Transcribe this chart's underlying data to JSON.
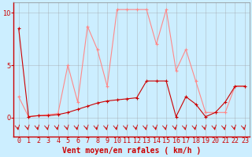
{
  "xlabel": "Vent moyen/en rafales ( km/h )",
  "bg_color": "#cceeff",
  "xlim": [
    -0.5,
    23.5
  ],
  "ylim": [
    -1.8,
    11.0
  ],
  "yticks": [
    0,
    5,
    10
  ],
  "xticks": [
    0,
    1,
    2,
    3,
    4,
    5,
    6,
    7,
    8,
    9,
    10,
    11,
    12,
    13,
    14,
    15,
    16,
    17,
    18,
    19,
    20,
    21,
    22,
    23
  ],
  "line1_x": [
    0,
    1,
    2,
    3,
    4,
    5,
    6,
    7,
    8,
    9,
    10,
    11,
    12,
    13,
    14,
    15,
    16,
    17,
    18,
    19,
    20,
    21,
    22,
    23
  ],
  "line1_y": [
    2.0,
    0.1,
    0.2,
    0.3,
    0.4,
    5.0,
    1.5,
    8.7,
    6.5,
    3.0,
    10.3,
    10.3,
    10.3,
    10.3,
    7.0,
    10.3,
    4.5,
    6.5,
    3.5,
    0.5,
    0.5,
    0.5,
    3.0,
    3.0
  ],
  "line2_x": [
    0,
    1,
    2,
    3,
    4,
    5,
    6,
    7,
    8,
    9,
    10,
    11,
    12,
    13,
    14,
    15,
    16,
    17,
    18,
    19,
    20,
    21,
    22,
    23
  ],
  "line2_y": [
    8.5,
    0.1,
    0.2,
    0.2,
    0.3,
    0.5,
    0.8,
    1.1,
    1.4,
    1.6,
    1.7,
    1.8,
    1.9,
    3.5,
    3.5,
    3.5,
    0.1,
    2.0,
    1.3,
    0.1,
    0.5,
    1.5,
    3.0,
    3.0
  ],
  "line1_color": "#ff8888",
  "line2_color": "#cc0000",
  "grid_color": "#999999",
  "arrow_color": "#cc0000",
  "xlabel_color": "#cc0000",
  "xlabel_fontsize": 7,
  "tick_fontsize": 6,
  "ytick_color": "#cc0000",
  "xtick_color": "#cc0000",
  "fig_width": 3.2,
  "fig_height": 2.0,
  "dpi": 100
}
